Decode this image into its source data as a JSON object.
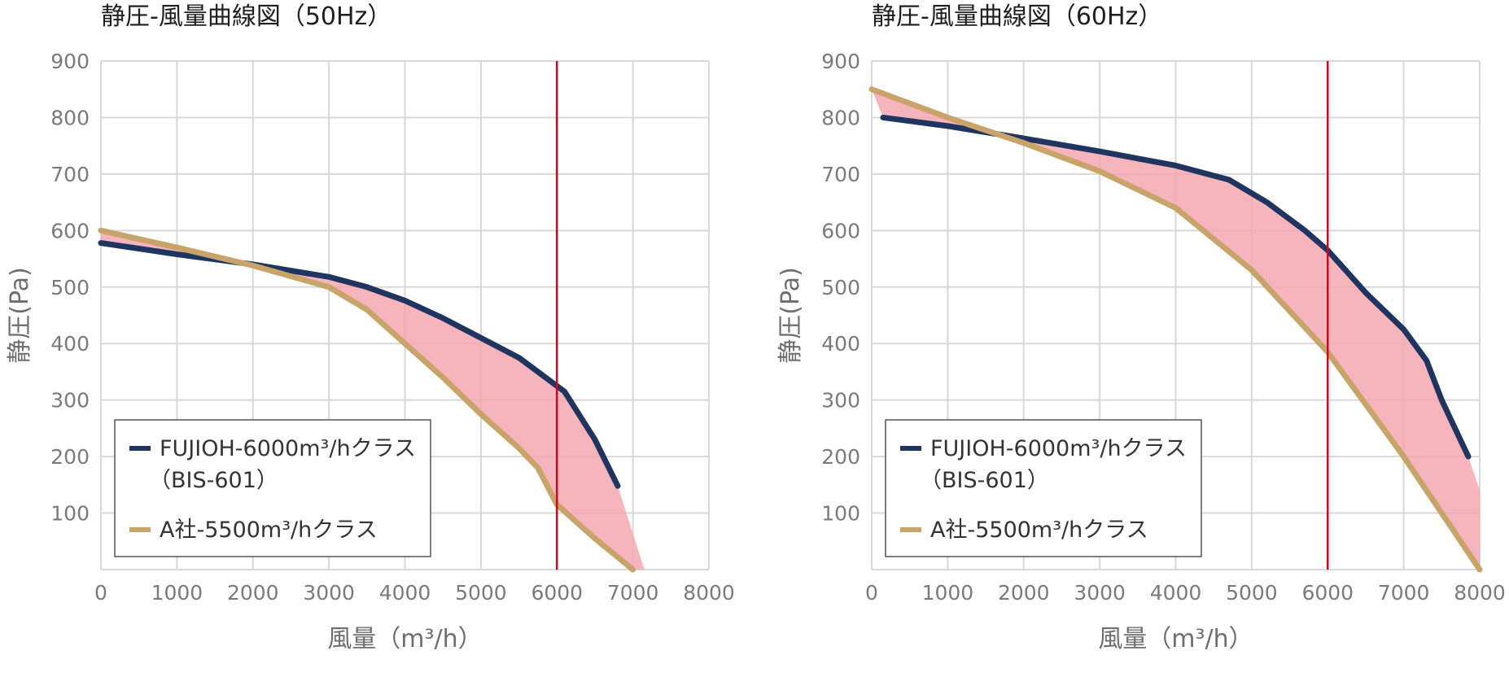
{
  "colors": {
    "fujioh": "#1f3560",
    "a_company": "#c9a46a",
    "fill": "#f4a8b2",
    "marker": "#cc0a1e",
    "grid": "#d8d8d8"
  },
  "chart_data": [
    {
      "type": "line",
      "title": "静圧-風量曲線図（50Hz）",
      "xlabel": "風量（m³/h）",
      "ylabel": "静圧(Pa)",
      "xlim": [
        0,
        8000
      ],
      "ylim": [
        0,
        900
      ],
      "xticks": [
        0,
        1000,
        2000,
        3000,
        4000,
        5000,
        6000,
        7000,
        8000
      ],
      "yticks": [
        100,
        200,
        300,
        400,
        500,
        600,
        700,
        800,
        900
      ],
      "xtick_labels": [
        "0",
        "1000",
        "2000",
        "3000",
        "4000",
        "5000",
        "6000",
        "7000",
        "8000"
      ],
      "ytick_labels": [
        "100",
        "200",
        "300",
        "400",
        "500",
        "600",
        "700",
        "800",
        "900"
      ],
      "grid": true,
      "legend_position": "bottom-left",
      "marker_x": 6000,
      "series": [
        {
          "name_line1": "FUJIOH-6000m³/hクラス",
          "name_line2": "（BIS-601）",
          "x": [
            0,
            1000,
            2000,
            3000,
            3500,
            4000,
            4500,
            5000,
            5500,
            6000,
            6100,
            6500,
            6800
          ],
          "y": [
            578,
            558,
            540,
            518,
            500,
            476,
            445,
            410,
            375,
            325,
            315,
            230,
            148
          ]
        },
        {
          "name_line1": "A社-5500m³/hクラス",
          "x": [
            0,
            1000,
            2000,
            3000,
            3500,
            4000,
            4500,
            5000,
            5500,
            5750,
            6000,
            6500,
            7000
          ],
          "y": [
            600,
            570,
            538,
            500,
            460,
            400,
            340,
            275,
            215,
            180,
            115,
            55,
            0
          ]
        }
      ],
      "shaded_extension": {
        "x": [
          6800,
          7150
        ],
        "y": [
          148,
          0
        ]
      }
    },
    {
      "type": "line",
      "title": "静圧-風量曲線図（60Hz）",
      "xlabel": "風量（m³/h）",
      "ylabel": "静圧(Pa)",
      "xlim": [
        0,
        8000
      ],
      "ylim": [
        0,
        900
      ],
      "xticks": [
        0,
        1000,
        2000,
        3000,
        4000,
        5000,
        6000,
        7000,
        8000
      ],
      "yticks": [
        100,
        200,
        300,
        400,
        500,
        600,
        700,
        800,
        900
      ],
      "xtick_labels": [
        "0",
        "1000",
        "2000",
        "3000",
        "4000",
        "5000",
        "6000",
        "7000",
        "8000"
      ],
      "ytick_labels": [
        "100",
        "200",
        "300",
        "400",
        "500",
        "600",
        "700",
        "800",
        "900"
      ],
      "grid": true,
      "legend_position": "bottom-left",
      "marker_x": 6000,
      "series": [
        {
          "name_line1": "FUJIOH-6000m³/hクラス",
          "name_line2": "（BIS-601）",
          "x": [
            150,
            1000,
            2000,
            3000,
            4000,
            4700,
            5200,
            5700,
            6000,
            6500,
            7000,
            7300,
            7500,
            7850
          ],
          "y": [
            800,
            785,
            763,
            740,
            715,
            690,
            650,
            600,
            565,
            490,
            425,
            370,
            300,
            200
          ]
        },
        {
          "name_line1": "A社-5500m³/hクラス",
          "x": [
            0,
            1000,
            2000,
            3000,
            4000,
            5000,
            6000,
            7000,
            8000
          ],
          "y": [
            850,
            800,
            755,
            705,
            640,
            530,
            385,
            200,
            0
          ]
        }
      ],
      "shaded_extension": {
        "x": [
          7850,
          8000
        ],
        "y": [
          200,
          140
        ]
      }
    }
  ]
}
